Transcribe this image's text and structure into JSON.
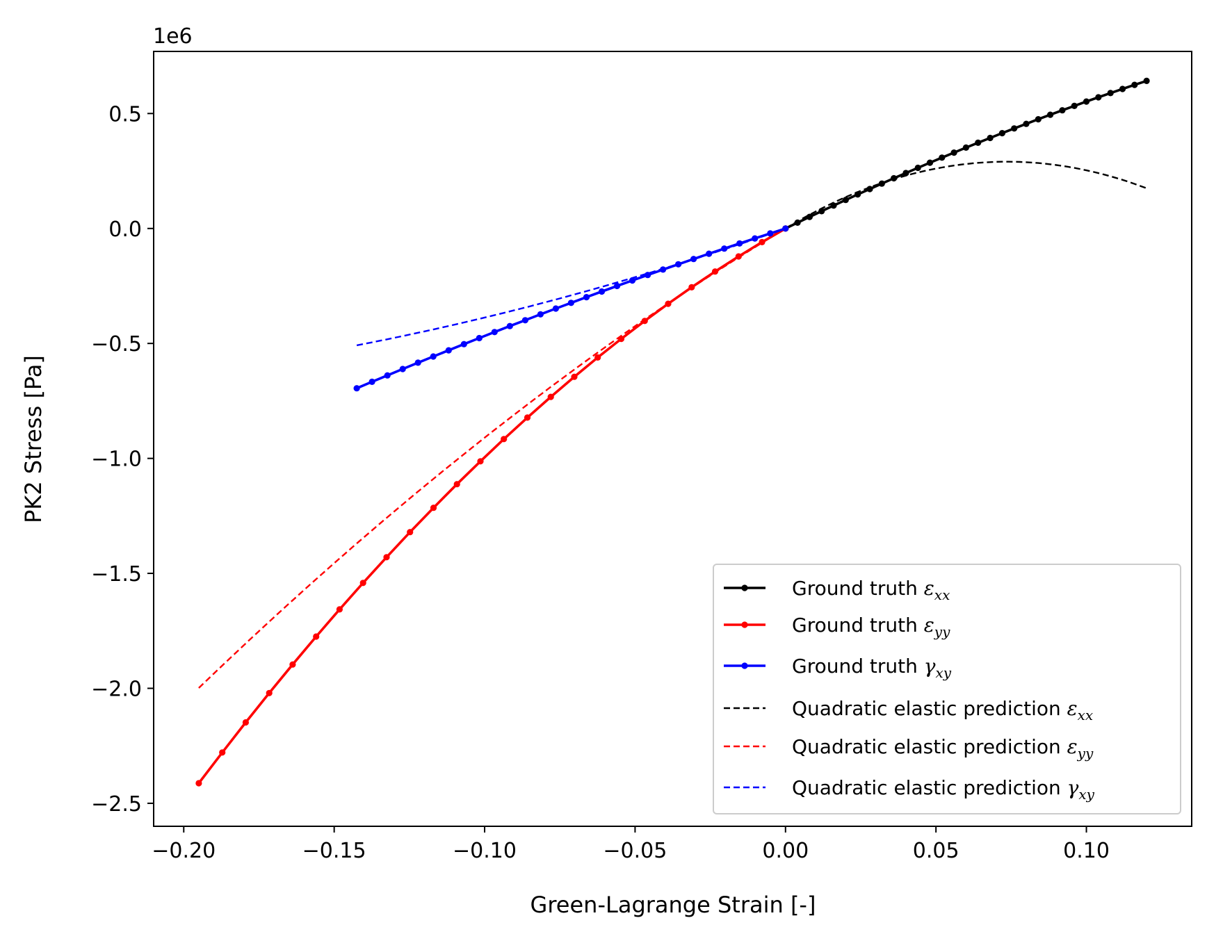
{
  "chart_data": {
    "type": "line",
    "xlabel": "Green-Lagrange Strain [-]",
    "ylabel": "PK2 Stress [Pa]",
    "y_offset_text": "1e6",
    "xlim": [
      -0.21,
      0.135
    ],
    "ylim": [
      -2.6,
      0.77
    ],
    "xticks": [
      -0.2,
      -0.15,
      -0.1,
      -0.05,
      0.0,
      0.05,
      0.1
    ],
    "xtick_labels": [
      "−0.20",
      "−0.15",
      "−0.10",
      "−0.05",
      "0.00",
      "0.05",
      "0.10"
    ],
    "yticks": [
      0.5,
      0.0,
      -0.5,
      -1.0,
      -1.5,
      -2.0,
      -2.5
    ],
    "ytick_labels": [
      "0.5",
      "0.0",
      "−0.5",
      "−1.0",
      "−1.5",
      "−2.0",
      "−2.5"
    ],
    "grid": false,
    "legend_position": "lower-right",
    "series": [
      {
        "name": "Ground truth εxx",
        "name_prefix": "Ground truth",
        "symbol": "ε",
        "subscript": "xx",
        "color": "#000000",
        "style": "solid-markers",
        "x_start": 0.0,
        "x_end": 0.12,
        "n": 31,
        "model": "gt",
        "coeffs": [
          6.37,
          -8.5,
          0,
          0
        ]
      },
      {
        "name": "Ground truth εyy",
        "name_prefix": "Ground truth",
        "symbol": "ε",
        "subscript": "yy",
        "color": "#ff0000",
        "style": "solid-markers",
        "x_start": -0.195,
        "x_end": 0.0,
        "n": 26,
        "model": "gt",
        "coeffs": [
          7.4,
          -25.5,
          0,
          0
        ]
      },
      {
        "name": "Ground truth γxy",
        "name_prefix": "Ground truth",
        "symbol": "γ",
        "subscript": "xy",
        "color": "#0000ff",
        "style": "solid-markers",
        "x_start": -0.1425,
        "x_end": 0.0,
        "n": 29,
        "model": "gt",
        "coeffs": [
          4.2,
          -4.75,
          0,
          0
        ]
      },
      {
        "name": "Quadratic elastic prediction εxx",
        "name_prefix": "Quadratic elastic prediction",
        "symbol": "ε",
        "subscript": "xx",
        "color": "#000000",
        "style": "dashed",
        "x_start": 0.0,
        "x_end": 0.12,
        "n": 61,
        "model": "quad",
        "coeffs": [
          7.89,
          -53.6
        ]
      },
      {
        "name": "Quadratic elastic prediction εyy",
        "name_prefix": "Quadratic elastic prediction",
        "symbol": "ε",
        "subscript": "yy",
        "color": "#ff0000",
        "style": "dashed",
        "x_start": -0.195,
        "x_end": 0.0,
        "n": 61,
        "model": "quad",
        "coeffs": [
          7.89,
          -12.1
        ]
      },
      {
        "name": "Quadratic elastic prediction γxy",
        "name_prefix": "Quadratic elastic prediction",
        "symbol": "γ",
        "subscript": "xy",
        "color": "#0000ff",
        "style": "dashed",
        "x_start": -0.1425,
        "x_end": 0.0,
        "n": 61,
        "model": "quad",
        "coeffs": [
          4.6,
          7.25
        ]
      }
    ]
  }
}
